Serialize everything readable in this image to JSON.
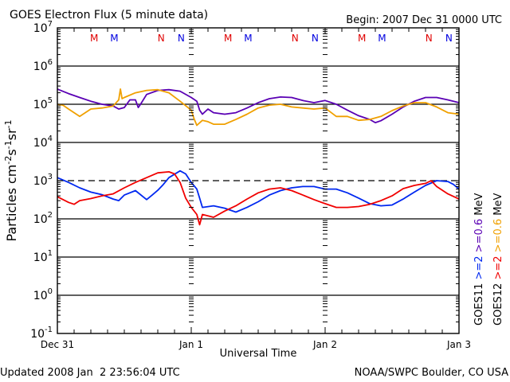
{
  "chart_data": {
    "type": "line",
    "title": "GOES Electron Flux (5 minute data)",
    "begin_label": "Begin: 2007 Dec 31 0000 UTC",
    "xlabel": "Universal Time",
    "ylabel": "Particles cm-2s-1sr-1",
    "yscale": "log",
    "ylim": [
      0.1,
      10000000
    ],
    "xlim_hours": [
      0,
      72
    ],
    "y_tick_labels": [
      {
        "base": "10",
        "exp": "7",
        "value": 10000000
      },
      {
        "base": "10",
        "exp": "6",
        "value": 1000000
      },
      {
        "base": "10",
        "exp": "5",
        "value": 100000
      },
      {
        "base": "10",
        "exp": "4",
        "value": 10000
      },
      {
        "base": "10",
        "exp": "3",
        "value": 1000
      },
      {
        "base": "10",
        "exp": "2",
        "value": 100
      },
      {
        "base": "10",
        "exp": "1",
        "value": 10
      },
      {
        "base": "10",
        "exp": "0",
        "value": 1
      },
      {
        "base": "10",
        "exp": "-1",
        "value": 0.1
      }
    ],
    "x_tick_labels": [
      {
        "label": "Dec 31",
        "hour": 0
      },
      {
        "label": "Jan 1",
        "hour": 24
      },
      {
        "label": "Jan 2",
        "hour": 48
      },
      {
        "label": "Jan 3",
        "hour": 72
      }
    ],
    "threshold_line": 1000,
    "solid_gridlines": [
      1000000,
      100000,
      10000,
      100,
      10,
      1
    ],
    "midnight_noon_markers": [
      {
        "label": "M",
        "hour": 6.6,
        "color": "#e00000"
      },
      {
        "label": "M",
        "hour": 10.2,
        "color": "#0000e0"
      },
      {
        "label": "N",
        "hour": 18.6,
        "color": "#e00000"
      },
      {
        "label": "N",
        "hour": 22.2,
        "color": "#0000e0"
      },
      {
        "label": "M",
        "hour": 30.6,
        "color": "#e00000"
      },
      {
        "label": "M",
        "hour": 34.2,
        "color": "#0000e0"
      },
      {
        "label": "N",
        "hour": 42.6,
        "color": "#e00000"
      },
      {
        "label": "N",
        "hour": 46.2,
        "color": "#0000e0"
      },
      {
        "label": "M",
        "hour": 54.6,
        "color": "#e00000"
      },
      {
        "label": "M",
        "hour": 58.2,
        "color": "#0000e0"
      },
      {
        "label": "N",
        "hour": 66.6,
        "color": "#e00000"
      },
      {
        "label": "N",
        "hour": 70.2,
        "color": "#0000e0"
      }
    ],
    "series": [
      {
        "name": "GOES11 >=0.6 MeV",
        "color": "#5a00b4",
        "x": [
          0,
          2,
          4,
          6,
          8,
          10,
          11,
          12,
          13,
          14,
          14.5,
          15,
          16,
          18,
          20,
          22,
          24,
          25,
          25.5,
          26,
          27,
          28,
          30,
          32,
          34,
          36,
          38,
          40,
          42,
          44,
          46,
          48,
          50,
          52,
          54,
          56,
          57,
          58,
          60,
          62,
          64,
          66,
          68,
          70,
          72
        ],
        "y": [
          250000,
          190000,
          150000,
          120000,
          100000,
          90000,
          75000,
          82000,
          130000,
          130000,
          82000,
          105000,
          180000,
          230000,
          240000,
          220000,
          150000,
          120000,
          70000,
          55000,
          75000,
          60000,
          55000,
          60000,
          80000,
          110000,
          140000,
          155000,
          150000,
          125000,
          110000,
          125000,
          100000,
          70000,
          50000,
          40000,
          33000,
          37000,
          55000,
          85000,
          120000,
          150000,
          150000,
          130000,
          110000
        ]
      },
      {
        "name": "GOES12 >=0.6 MeV",
        "color": "#f0a000",
        "x": [
          0,
          1,
          2,
          4,
          6,
          8,
          10,
          11,
          11.3,
          11.6,
          12,
          14,
          16,
          18,
          20,
          22,
          24,
          24.5,
          25,
          26,
          27,
          28,
          30,
          32,
          34,
          36,
          38,
          40,
          42,
          44,
          46,
          48,
          50,
          52,
          54,
          56,
          58,
          60,
          62,
          64,
          66,
          68,
          70,
          72
        ],
        "y": [
          100000,
          95000,
          75000,
          48000,
          75000,
          80000,
          90000,
          130000,
          250000,
          140000,
          150000,
          200000,
          230000,
          240000,
          200000,
          120000,
          70000,
          42000,
          28000,
          38000,
          35000,
          30000,
          30000,
          40000,
          55000,
          80000,
          95000,
          100000,
          85000,
          80000,
          75000,
          80000,
          48000,
          48000,
          38000,
          40000,
          48000,
          68000,
          90000,
          110000,
          110000,
          85000,
          60000,
          55000
        ]
      },
      {
        "name": "GOES11 >=2 MeV",
        "color": "#0028f0",
        "x": [
          0,
          2,
          4,
          6,
          8,
          10,
          11,
          12,
          14,
          16,
          17,
          18,
          19,
          20,
          22,
          23,
          24,
          25,
          25.5,
          26,
          28,
          30,
          32,
          34,
          36,
          38,
          40,
          42,
          44,
          46,
          48,
          50,
          52,
          54,
          56,
          58,
          60,
          62,
          64,
          66,
          68,
          70,
          71,
          72
        ],
        "y": [
          1200,
          900,
          650,
          500,
          430,
          330,
          300,
          420,
          550,
          320,
          420,
          560,
          800,
          1200,
          1800,
          1500,
          900,
          600,
          350,
          200,
          220,
          190,
          150,
          200,
          280,
          420,
          550,
          650,
          700,
          700,
          600,
          600,
          480,
          350,
          250,
          220,
          230,
          330,
          500,
          750,
          1000,
          950,
          800,
          600
        ]
      },
      {
        "name": "GOES12 >=2 MeV",
        "color": "#f00000",
        "x": [
          0,
          2,
          3,
          4,
          6,
          8,
          10,
          12,
          14,
          16,
          18,
          20,
          21,
          22,
          23,
          24,
          25,
          25.5,
          26,
          28,
          30,
          32,
          34,
          36,
          38,
          40,
          42,
          44,
          46,
          48,
          50,
          52,
          54,
          56,
          58,
          60,
          62,
          64,
          66,
          67,
          68,
          70,
          72
        ],
        "y": [
          380,
          270,
          240,
          300,
          340,
          400,
          450,
          650,
          900,
          1200,
          1600,
          1700,
          1500,
          900,
          350,
          200,
          130,
          70,
          130,
          110,
          160,
          220,
          330,
          480,
          600,
          650,
          550,
          420,
          320,
          250,
          200,
          200,
          210,
          240,
          300,
          400,
          620,
          750,
          850,
          1000,
          700,
          450,
          330
        ]
      }
    ],
    "legend": {
      "placement": "right, vertical",
      "columns": [
        {
          "satellite": "GOES11",
          "lo_label": ">=2",
          "hi_label": ">=0.6",
          "unit": "MeV",
          "lo_color": "#0028f0",
          "hi_color": "#5a00b4"
        },
        {
          "satellite": "GOES12",
          "lo_label": ">=2",
          "hi_label": ">=0.6",
          "unit": "MeV",
          "lo_color": "#f00000",
          "hi_color": "#f0a000"
        }
      ]
    }
  },
  "footer": {
    "updated": "Updated 2008 Jan  2 23:56:04 UTC",
    "source": "NOAA/SWPC Boulder, CO USA"
  }
}
